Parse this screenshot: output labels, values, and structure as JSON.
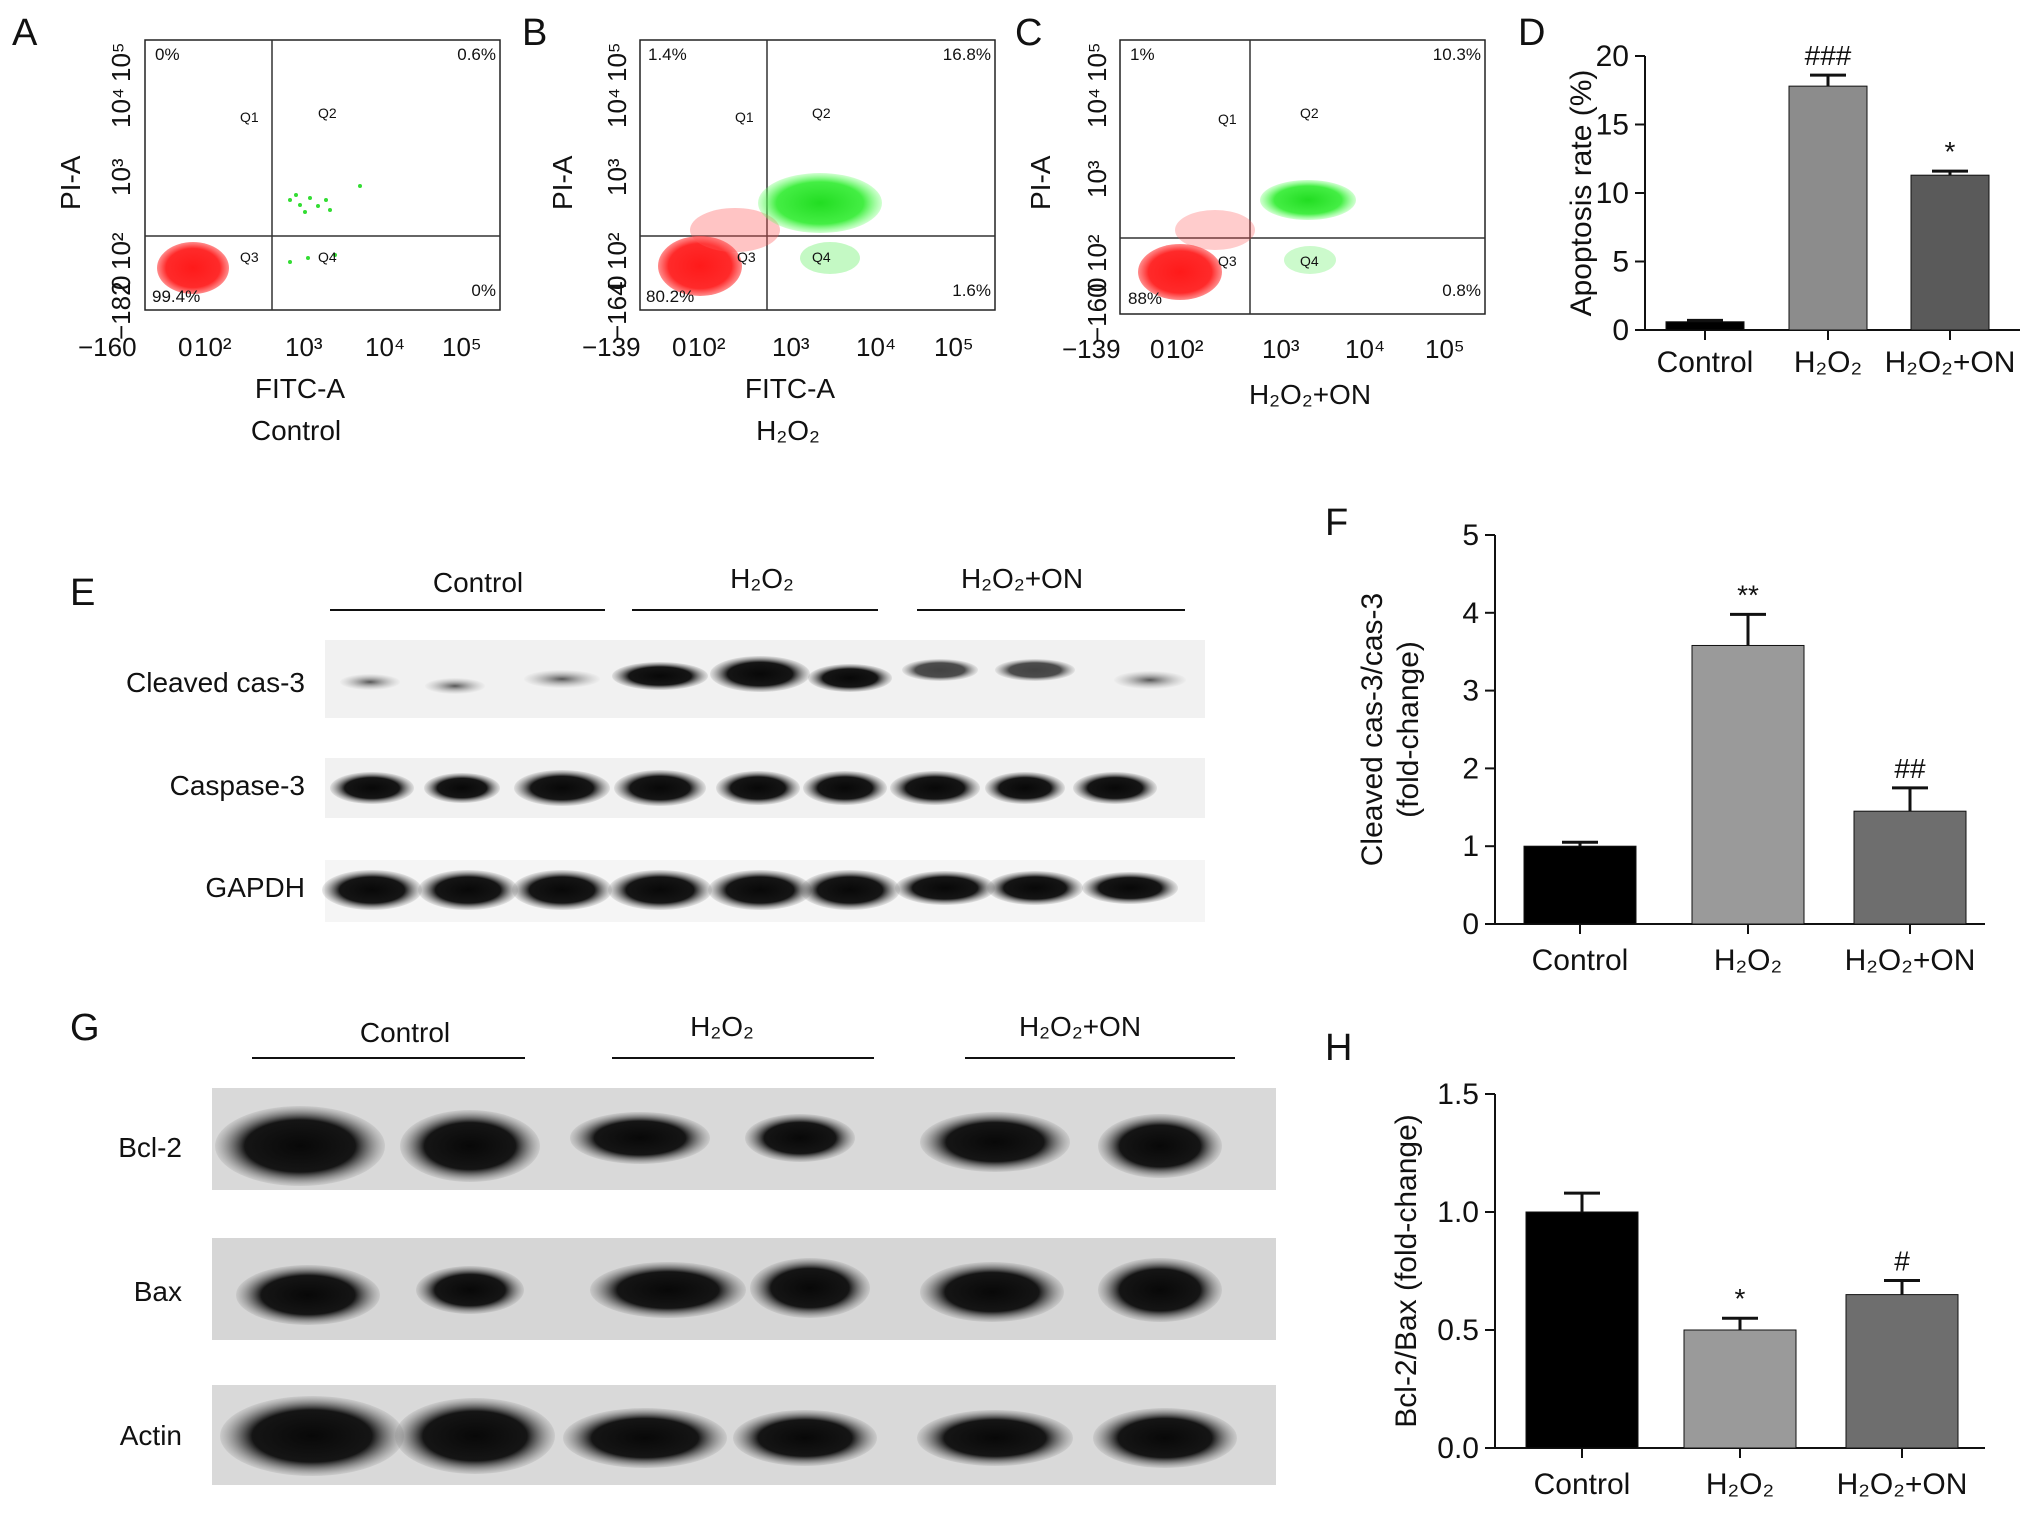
{
  "panels": {
    "A": {
      "letter": "A",
      "yaxis": "PI-A",
      "xaxis": "FITC-A",
      "caption": "Control",
      "quadrants": {
        "ul": "0%",
        "ur": "0.6%",
        "ll": "99.4%",
        "lr": "0%"
      },
      "xticks": [
        "−160",
        "0",
        "10²",
        "10³",
        "10⁴",
        "10⁵"
      ],
      "yticks": [
        "−182",
        "0",
        "10²",
        "10³",
        "10⁴",
        "10⁵"
      ]
    },
    "B": {
      "letter": "B",
      "yaxis": "PI-A",
      "xaxis": "FITC-A",
      "caption": "H₂O₂",
      "quadrants": {
        "ul": "1.4%",
        "ur": "16.8%",
        "ll": "80.2%",
        "lr": "1.6%"
      },
      "xticks": [
        "−139",
        "0",
        "10²",
        "10³",
        "10⁴",
        "10⁵"
      ],
      "yticks": [
        "−164",
        "0",
        "10²",
        "10³",
        "10⁴",
        "10⁵"
      ]
    },
    "C": {
      "letter": "C",
      "yaxis": "PI-A",
      "xaxis": "",
      "caption": "H₂O₂+ON",
      "quadrants": {
        "ul": "1%",
        "ur": "10.3%",
        "ll": "88%",
        "lr": "0.8%"
      },
      "xticks": [
        "−139",
        "0",
        "10²",
        "10³",
        "10⁴",
        "10⁵"
      ],
      "yticks": [
        "−160",
        "0",
        "10²",
        "10³",
        "10⁴",
        "10⁵"
      ]
    },
    "D": {
      "letter": "D"
    },
    "E": {
      "letter": "E",
      "groups": [
        "Control",
        "H₂O₂",
        "H₂O₂+ON"
      ],
      "rows": [
        "Cleaved cas-3",
        "Caspase-3",
        "GAPDH"
      ]
    },
    "F": {
      "letter": "F"
    },
    "G": {
      "letter": "G",
      "groups": [
        "Control",
        "H₂O₂",
        "H₂O₂+ON"
      ],
      "rows": [
        "Bcl-2",
        "Bax",
        "Actin"
      ]
    },
    "H": {
      "letter": "H"
    }
  },
  "quadrant_labels": [
    "Q1",
    "Q2",
    "Q3",
    "Q4"
  ],
  "chart_data": [
    {
      "id": "D",
      "type": "bar",
      "categories": [
        "Control",
        "H₂O₂",
        "H₂O₂+ON"
      ],
      "values": [
        0.6,
        17.8,
        11.3
      ],
      "errors": [
        0.1,
        0.8,
        0.3
      ],
      "significance": [
        "",
        "###",
        "*"
      ],
      "ylabel": "Apoptosis rate (%)",
      "ylim": [
        0,
        20
      ],
      "yticks": [
        0,
        5,
        10,
        15,
        20
      ],
      "colors": [
        "#000000",
        "#8c8c8c",
        "#5a5a5a"
      ]
    },
    {
      "id": "F",
      "type": "bar",
      "categories": [
        "Control",
        "H₂O₂",
        "H₂O₂+ON"
      ],
      "values": [
        1.0,
        3.58,
        1.45
      ],
      "errors": [
        0.05,
        0.4,
        0.3
      ],
      "significance": [
        "",
        "**",
        "##"
      ],
      "ylabel": "Cleaved cas-3/cas-3 (fold-change)",
      "ylim": [
        0,
        5
      ],
      "yticks": [
        0,
        1,
        2,
        3,
        4,
        5
      ],
      "colors": [
        "#000000",
        "#9a9a9a",
        "#6e6e6e"
      ]
    },
    {
      "id": "H",
      "type": "bar",
      "categories": [
        "Control",
        "H₂O₂",
        "H₂O₂+ON"
      ],
      "values": [
        1.0,
        0.5,
        0.65
      ],
      "errors": [
        0.08,
        0.05,
        0.06
      ],
      "significance": [
        "",
        "*",
        "#"
      ],
      "ylabel": "Bcl-2/Bax (fold-change)",
      "ylim": [
        0,
        1.5
      ],
      "yticks": [
        "0.0",
        "0.5",
        "1.0",
        "1.5"
      ],
      "colors": [
        "#000000",
        "#9a9a9a",
        "#6e6e6e"
      ]
    }
  ]
}
